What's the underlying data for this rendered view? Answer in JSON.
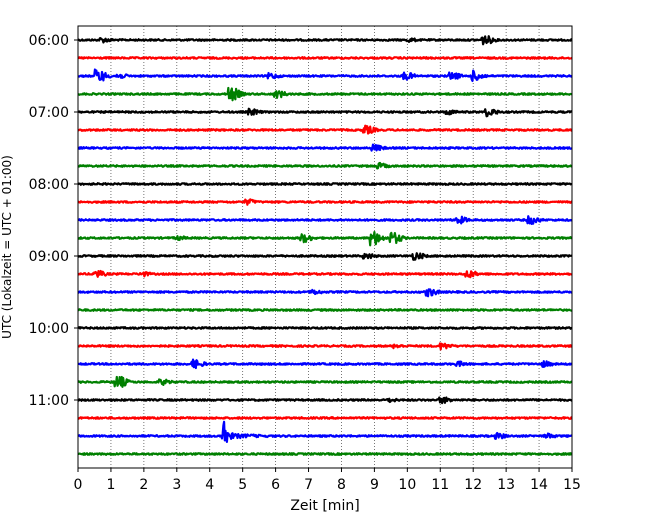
{
  "chart_data": {
    "type": "line",
    "title": "",
    "xlabel": "Zeit  [min]",
    "ylabel": "UTC (Lokalzeit = UTC + 01:00)",
    "xlim": [
      0,
      15
    ],
    "x_ticks": [
      0,
      1,
      2,
      3,
      4,
      5,
      6,
      7,
      8,
      9,
      10,
      11,
      12,
      13,
      14,
      15
    ],
    "y_ticks": [
      "06:00",
      "07:00",
      "08:00",
      "09:00",
      "10:00",
      "11:00"
    ],
    "trace_interval_minutes": 15,
    "start_time": "06:00",
    "grid": "vertical dotted",
    "legend": "none",
    "colors": [
      "#000000",
      "#ff0000",
      "#0000ff",
      "#008000"
    ],
    "traces": [
      {
        "time": "06:00",
        "color": "#000000",
        "events": [
          {
            "t": 0.7,
            "amp": 0.3
          },
          {
            "t": 10.0,
            "amp": 0.25
          },
          {
            "t": 12.3,
            "amp": 0.55
          }
        ]
      },
      {
        "time": "06:15",
        "color": "#ff0000",
        "events": []
      },
      {
        "time": "06:30",
        "color": "#0000ff",
        "events": [
          {
            "t": 0.55,
            "amp": 0.75
          },
          {
            "t": 1.2,
            "amp": 0.3
          },
          {
            "t": 5.8,
            "amp": 0.35
          },
          {
            "t": 9.9,
            "amp": 0.45
          },
          {
            "t": 11.3,
            "amp": 0.45
          },
          {
            "t": 12.0,
            "amp": 0.6
          }
        ]
      },
      {
        "time": "06:45",
        "color": "#008000",
        "events": [
          {
            "t": 4.6,
            "amp": 0.8
          },
          {
            "t": 6.0,
            "amp": 0.45
          }
        ]
      },
      {
        "time": "07:00",
        "color": "#000000",
        "events": [
          {
            "t": 5.2,
            "amp": 0.4
          },
          {
            "t": 11.2,
            "amp": 0.3
          },
          {
            "t": 12.4,
            "amp": 0.5
          }
        ]
      },
      {
        "time": "07:15",
        "color": "#ff0000",
        "events": [
          {
            "t": 8.7,
            "amp": 0.5
          }
        ]
      },
      {
        "time": "07:30",
        "color": "#0000ff",
        "events": [
          {
            "t": 8.95,
            "amp": 0.4
          }
        ]
      },
      {
        "time": "07:45",
        "color": "#008000",
        "events": [
          {
            "t": 9.1,
            "amp": 0.35
          }
        ]
      },
      {
        "time": "08:00",
        "color": "#000000",
        "events": []
      },
      {
        "time": "08:15",
        "color": "#ff0000",
        "events": [
          {
            "t": 5.1,
            "amp": 0.35
          }
        ]
      },
      {
        "time": "08:30",
        "color": "#0000ff",
        "events": [
          {
            "t": 11.5,
            "amp": 0.45
          },
          {
            "t": 13.7,
            "amp": 0.5
          }
        ]
      },
      {
        "time": "08:45",
        "color": "#008000",
        "events": [
          {
            "t": 3.0,
            "amp": 0.25
          },
          {
            "t": 6.8,
            "amp": 0.5
          },
          {
            "t": 8.9,
            "amp": 0.85
          },
          {
            "t": 9.5,
            "amp": 0.7
          }
        ]
      },
      {
        "time": "09:00",
        "color": "#000000",
        "events": [
          {
            "t": 8.7,
            "amp": 0.35
          },
          {
            "t": 10.2,
            "amp": 0.45
          }
        ]
      },
      {
        "time": "09:15",
        "color": "#ff0000",
        "events": [
          {
            "t": 0.5,
            "amp": 0.45
          },
          {
            "t": 1.9,
            "amp": 0.3
          },
          {
            "t": 11.8,
            "amp": 0.45
          }
        ]
      },
      {
        "time": "09:30",
        "color": "#0000ff",
        "events": [
          {
            "t": 7.1,
            "amp": 0.3
          },
          {
            "t": 10.6,
            "amp": 0.5
          }
        ]
      },
      {
        "time": "09:45",
        "color": "#008000",
        "events": []
      },
      {
        "time": "10:00",
        "color": "#000000",
        "events": []
      },
      {
        "time": "10:15",
        "color": "#ff0000",
        "events": [
          {
            "t": 11.0,
            "amp": 0.4
          },
          {
            "t": 9.6,
            "amp": 0.25
          }
        ]
      },
      {
        "time": "10:30",
        "color": "#0000ff",
        "events": [
          {
            "t": 3.5,
            "amp": 0.5
          },
          {
            "t": 11.5,
            "amp": 0.3
          },
          {
            "t": 14.1,
            "amp": 0.35
          }
        ]
      },
      {
        "time": "10:45",
        "color": "#008000",
        "events": [
          {
            "t": 1.15,
            "amp": 0.75
          },
          {
            "t": 2.5,
            "amp": 0.35
          }
        ]
      },
      {
        "time": "11:00",
        "color": "#000000",
        "events": [
          {
            "t": 11.0,
            "amp": 0.4
          },
          {
            "t": 9.4,
            "amp": 0.25
          }
        ]
      },
      {
        "time": "11:15",
        "color": "#ff0000",
        "events": []
      },
      {
        "time": "11:30",
        "color": "#0000ff",
        "events": [
          {
            "t": 4.4,
            "amp": 3.5
          },
          {
            "t": 12.7,
            "amp": 0.35
          },
          {
            "t": 14.2,
            "amp": 0.3
          }
        ]
      },
      {
        "time": "11:45",
        "color": "#008000",
        "events": []
      }
    ]
  }
}
